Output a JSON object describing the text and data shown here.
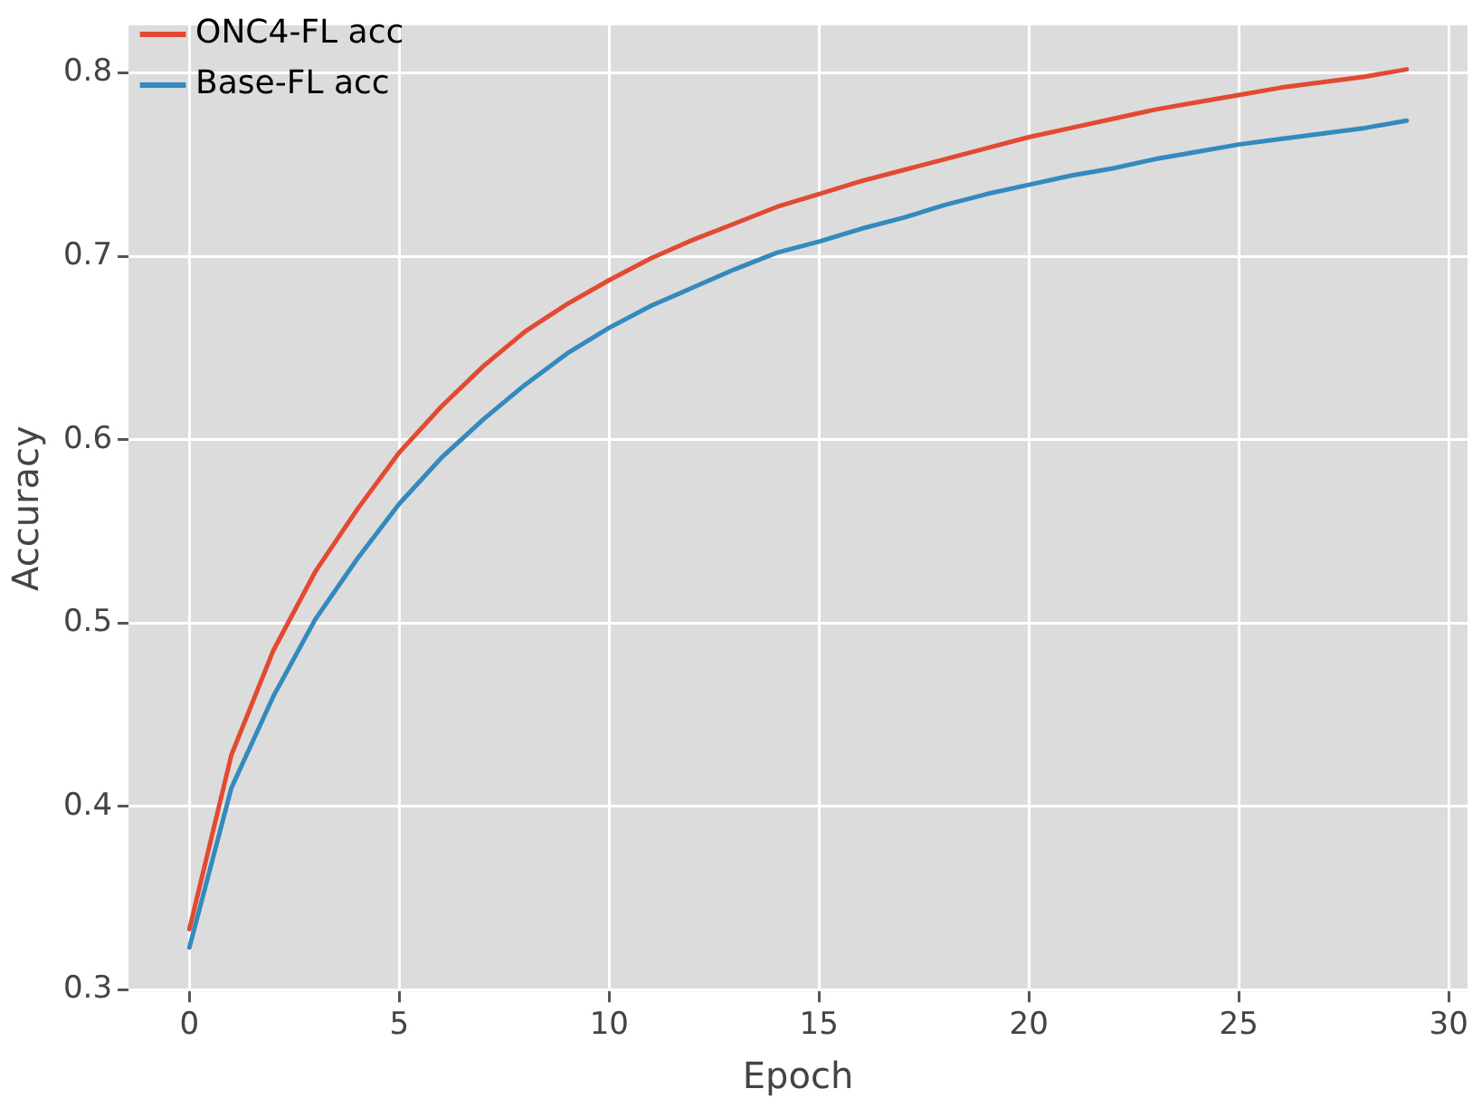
{
  "chart_data": {
    "type": "line",
    "xlabel": "Epoch",
    "ylabel": "Accuracy",
    "x": [
      0,
      1,
      2,
      3,
      4,
      5,
      6,
      7,
      8,
      9,
      10,
      11,
      12,
      13,
      14,
      15,
      16,
      17,
      18,
      19,
      20,
      21,
      22,
      23,
      24,
      25,
      26,
      27,
      28,
      29
    ],
    "series": [
      {
        "name": "ONC4-FL acc",
        "color": "#e24a33",
        "values": [
          0.333,
          0.428,
          0.485,
          0.528,
          0.562,
          0.593,
          0.618,
          0.64,
          0.659,
          0.674,
          0.687,
          0.699,
          0.709,
          0.718,
          0.727,
          0.734,
          0.741,
          0.747,
          0.753,
          0.759,
          0.765,
          0.77,
          0.775,
          0.78,
          0.784,
          0.788,
          0.792,
          0.795,
          0.798,
          0.802
        ]
      },
      {
        "name": "Base-FL acc",
        "color": "#348abd",
        "values": [
          0.323,
          0.41,
          0.46,
          0.502,
          0.535,
          0.565,
          0.59,
          0.611,
          0.63,
          0.647,
          0.661,
          0.673,
          0.683,
          0.693,
          0.702,
          0.708,
          0.715,
          0.721,
          0.728,
          0.734,
          0.739,
          0.744,
          0.748,
          0.753,
          0.757,
          0.761,
          0.764,
          0.767,
          0.77,
          0.774
        ]
      }
    ],
    "xlim": [
      -1.45,
      30.45
    ],
    "xticks": [
      0,
      5,
      10,
      15,
      20,
      25,
      30
    ],
    "ylim": [
      0.299,
      0.826
    ],
    "yticks": [
      0.3,
      0.4,
      0.5,
      0.6,
      0.7,
      0.8
    ],
    "grid": true,
    "legend": "top left",
    "marker": "none",
    "line_style": "solid"
  }
}
